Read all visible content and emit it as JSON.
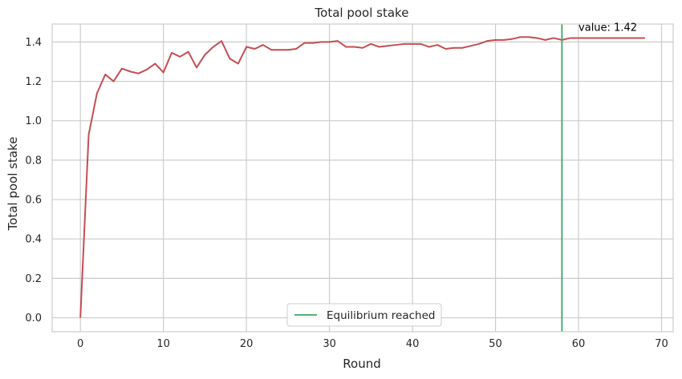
{
  "chart_data": {
    "type": "line",
    "title": "Total pool stake",
    "xlabel": "Round",
    "ylabel": "Total pool stake",
    "xlim": [
      -3.4,
      71.4
    ],
    "ylim": [
      -0.071,
      1.491
    ],
    "x_ticks": [
      0,
      10,
      20,
      30,
      40,
      50,
      60,
      70
    ],
    "y_ticks": [
      0.0,
      0.2,
      0.4,
      0.6,
      0.8,
      1.0,
      1.2,
      1.4
    ],
    "y_tick_labels": [
      "0.0",
      "0.2",
      "0.4",
      "0.6",
      "0.8",
      "1.0",
      "1.2",
      "1.4"
    ],
    "grid": true,
    "legend_position": "bottom-center",
    "series": [
      {
        "color": "#c44e52",
        "x": [
          0,
          1,
          2,
          3,
          4,
          5,
          6,
          7,
          8,
          9,
          10,
          11,
          12,
          13,
          14,
          15,
          16,
          17,
          18,
          19,
          20,
          21,
          22,
          23,
          24,
          25,
          26,
          27,
          28,
          29,
          30,
          31,
          32,
          33,
          34,
          35,
          36,
          37,
          38,
          39,
          40,
          41,
          42,
          43,
          44,
          45,
          46,
          47,
          48,
          49,
          50,
          51,
          52,
          53,
          54,
          55,
          56,
          57,
          58,
          59,
          60,
          61,
          62,
          63,
          64,
          65,
          66,
          67,
          68
        ],
        "y": [
          0.0,
          0.93,
          1.14,
          1.235,
          1.2,
          1.265,
          1.25,
          1.24,
          1.26,
          1.29,
          1.245,
          1.345,
          1.325,
          1.35,
          1.27,
          1.335,
          1.375,
          1.405,
          1.315,
          1.29,
          1.375,
          1.365,
          1.385,
          1.36,
          1.36,
          1.36,
          1.365,
          1.395,
          1.395,
          1.4,
          1.4,
          1.405,
          1.375,
          1.375,
          1.37,
          1.39,
          1.375,
          1.38,
          1.385,
          1.39,
          1.39,
          1.39,
          1.375,
          1.385,
          1.365,
          1.37,
          1.37,
          1.38,
          1.39,
          1.405,
          1.41,
          1.41,
          1.415,
          1.425,
          1.425,
          1.42,
          1.41,
          1.42,
          1.41,
          1.42,
          1.42,
          1.42,
          1.42,
          1.42,
          1.42,
          1.42,
          1.42,
          1.42,
          1.42
        ]
      },
      {
        "name": "Equilibrium reached",
        "type": "vline",
        "color": "#3aa867",
        "x": 58
      }
    ],
    "annotations": [
      {
        "text": "value: 1.42",
        "x": 60,
        "y": 1.475
      }
    ]
  }
}
